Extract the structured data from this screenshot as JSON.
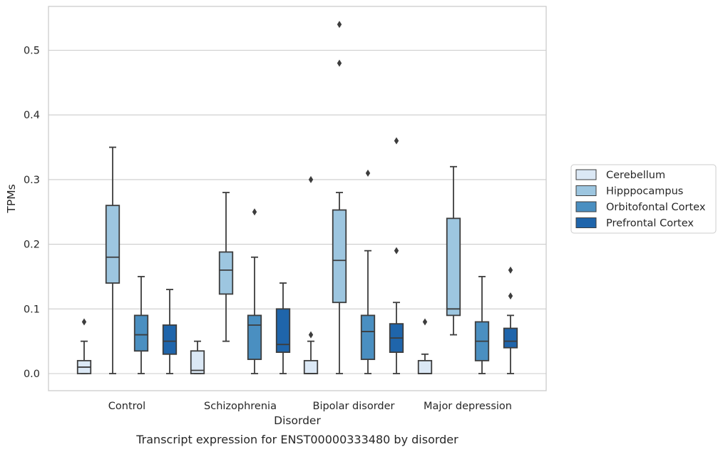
{
  "chart_data": {
    "type": "box",
    "caption": "Transcript expression for ENST00000333480 by disorder",
    "xlabel": "Disorder",
    "ylabel": "TPMs",
    "ylim": [
      -0.026,
      0.57
    ],
    "yticks": [
      0.0,
      0.1,
      0.2,
      0.3,
      0.4,
      0.5
    ],
    "ytick_labels": [
      "0.0",
      "0.1",
      "0.2",
      "0.3",
      "0.4",
      "0.5"
    ],
    "grid": "horizontal",
    "legend_position": "right",
    "categories": [
      "Control",
      "Schizophrenia",
      "Bipolar disorder",
      "Major depression"
    ],
    "series": [
      {
        "name": "Cerebellum",
        "color": "#dbe8f5",
        "boxes": [
          {
            "whisker_low": 0.0,
            "q1": 0.0,
            "median": 0.01,
            "q3": 0.02,
            "whisker_high": 0.05,
            "outliers": [
              0.08
            ]
          },
          {
            "whisker_low": 0.0,
            "q1": 0.0,
            "median": 0.005,
            "q3": 0.035,
            "whisker_high": 0.05,
            "outliers": []
          },
          {
            "whisker_low": 0.0,
            "q1": 0.0,
            "median": 0.0,
            "q3": 0.02,
            "whisker_high": 0.05,
            "outliers": [
              0.06,
              0.3
            ]
          },
          {
            "whisker_low": 0.0,
            "q1": 0.0,
            "median": 0.0,
            "q3": 0.02,
            "whisker_high": 0.03,
            "outliers": [
              0.08
            ]
          }
        ]
      },
      {
        "name": "Hipppocampus",
        "color": "#9dc6e0",
        "boxes": [
          {
            "whisker_low": 0.0,
            "q1": 0.14,
            "median": 0.18,
            "q3": 0.26,
            "whisker_high": 0.35,
            "outliers": []
          },
          {
            "whisker_low": 0.05,
            "q1": 0.123,
            "median": 0.16,
            "q3": 0.188,
            "whisker_high": 0.28,
            "outliers": []
          },
          {
            "whisker_low": 0.0,
            "q1": 0.11,
            "median": 0.175,
            "q3": 0.253,
            "whisker_high": 0.28,
            "outliers": [
              0.48,
              0.54
            ]
          },
          {
            "whisker_low": 0.06,
            "q1": 0.09,
            "median": 0.1,
            "q3": 0.24,
            "whisker_high": 0.32,
            "outliers": []
          }
        ]
      },
      {
        "name": "Orbitofontal Cortex",
        "color": "#4a8fc1",
        "boxes": [
          {
            "whisker_low": 0.0,
            "q1": 0.035,
            "median": 0.06,
            "q3": 0.09,
            "whisker_high": 0.15,
            "outliers": []
          },
          {
            "whisker_low": 0.0,
            "q1": 0.022,
            "median": 0.075,
            "q3": 0.09,
            "whisker_high": 0.18,
            "outliers": [
              0.25
            ]
          },
          {
            "whisker_low": 0.0,
            "q1": 0.022,
            "median": 0.065,
            "q3": 0.09,
            "whisker_high": 0.19,
            "outliers": [
              0.31
            ]
          },
          {
            "whisker_low": 0.0,
            "q1": 0.02,
            "median": 0.05,
            "q3": 0.08,
            "whisker_high": 0.15,
            "outliers": []
          }
        ]
      },
      {
        "name": "Prefrontal Cortex",
        "color": "#1f65ab",
        "boxes": [
          {
            "whisker_low": 0.0,
            "q1": 0.03,
            "median": 0.05,
            "q3": 0.075,
            "whisker_high": 0.13,
            "outliers": []
          },
          {
            "whisker_low": 0.0,
            "q1": 0.033,
            "median": 0.045,
            "q3": 0.1,
            "whisker_high": 0.14,
            "outliers": []
          },
          {
            "whisker_low": 0.0,
            "q1": 0.033,
            "median": 0.055,
            "q3": 0.077,
            "whisker_high": 0.11,
            "outliers": [
              0.19,
              0.36
            ]
          },
          {
            "whisker_low": 0.0,
            "q1": 0.04,
            "median": 0.05,
            "q3": 0.07,
            "whisker_high": 0.09,
            "outliers": [
              0.12,
              0.16
            ]
          }
        ]
      }
    ]
  }
}
